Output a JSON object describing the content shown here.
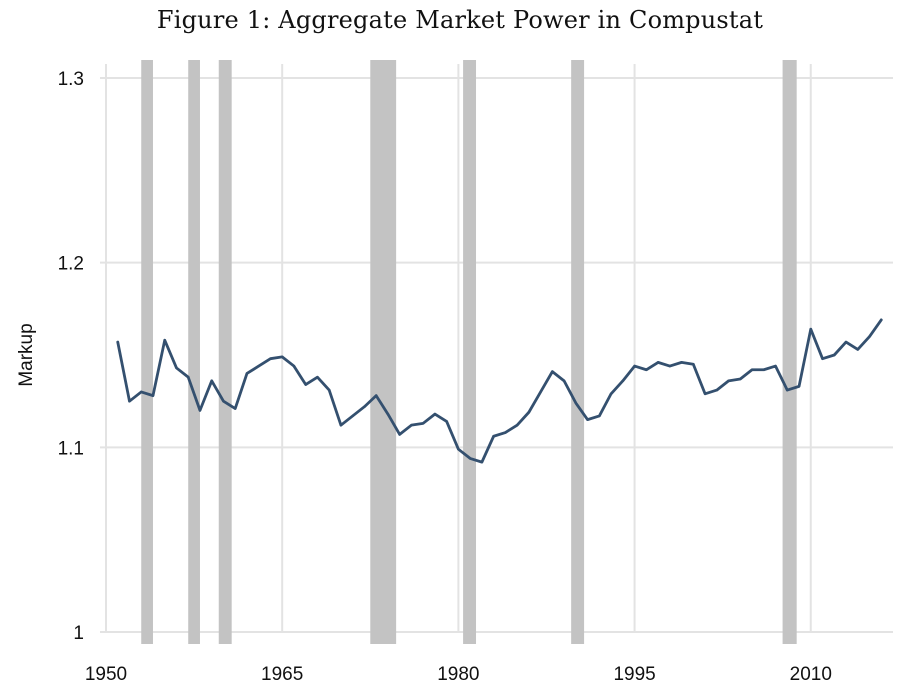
{
  "figure": {
    "title": "Figure 1: Aggregate Market Power in Compustat"
  },
  "chart_data": {
    "type": "line",
    "title": "Figure 1: Aggregate Market Power in Compustat",
    "xlabel": "",
    "ylabel": "Markup",
    "xlim": [
      1950,
      2017
    ],
    "ylim": [
      1.0,
      1.3
    ],
    "x_ticks": [
      "1950",
      "1965",
      "1980",
      "1995",
      "2010"
    ],
    "y_ticks": [
      "1",
      "1.1",
      "1.2",
      "1.3"
    ],
    "grid": true,
    "legend": "none",
    "line_color": "#34506f",
    "band_color": "#c3c3c3",
    "grid_color": "#e3e3e3",
    "shaded_periods": [
      [
        1953.0,
        1954.0
      ],
      [
        1957.0,
        1958.0
      ],
      [
        1959.6,
        1960.7
      ],
      [
        1972.5,
        1974.7
      ],
      [
        1980.4,
        1981.5
      ],
      [
        1989.6,
        1990.7
      ],
      [
        2007.6,
        2008.8
      ]
    ],
    "series": [
      {
        "x": [
          1951,
          1952,
          1953,
          1954,
          1955,
          1956,
          1957,
          1958,
          1959,
          1960,
          1961,
          1962,
          1963,
          1964,
          1965,
          1966,
          1967,
          1968,
          1969,
          1970,
          1971,
          1972,
          1973,
          1974,
          1975,
          1976,
          1977,
          1978,
          1979,
          1980,
          1981,
          1982,
          1983,
          1984,
          1985,
          1986,
          1987,
          1988,
          1989,
          1990,
          1991,
          1992,
          1993,
          1994,
          1995,
          1996,
          1997,
          1998,
          1999,
          2000,
          2001,
          2002,
          2003,
          2004,
          2005,
          2006,
          2007,
          2008,
          2009,
          2010,
          2011,
          2012,
          2013,
          2014,
          2015,
          2016
        ],
        "y": [
          1.157,
          1.125,
          1.13,
          1.128,
          1.158,
          1.143,
          1.138,
          1.12,
          1.136,
          1.125,
          1.121,
          1.14,
          1.144,
          1.148,
          1.149,
          1.144,
          1.134,
          1.138,
          1.131,
          1.112,
          1.117,
          1.122,
          1.128,
          1.118,
          1.107,
          1.112,
          1.113,
          1.118,
          1.114,
          1.099,
          1.094,
          1.092,
          1.106,
          1.108,
          1.112,
          1.119,
          1.13,
          1.141,
          1.136,
          1.124,
          1.115,
          1.117,
          1.129,
          1.136,
          1.144,
          1.142,
          1.146,
          1.144,
          1.146,
          1.145,
          1.129,
          1.131,
          1.136,
          1.137,
          1.142,
          1.142,
          1.144,
          1.131,
          1.133,
          1.164,
          1.148,
          1.15,
          1.157,
          1.153,
          1.16,
          1.169
        ]
      }
    ]
  }
}
